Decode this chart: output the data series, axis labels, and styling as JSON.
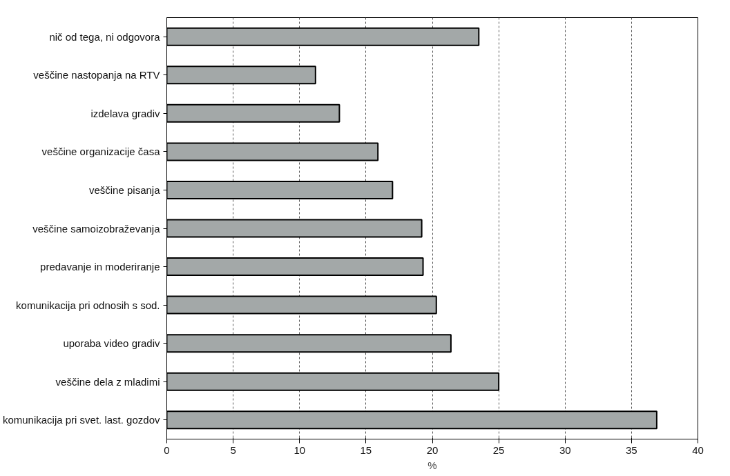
{
  "chart_data": {
    "type": "bar",
    "orientation": "horizontal",
    "xlabel": "%",
    "categories": [
      "nič od tega, ni odgovora",
      "veščine nastopanja na RTV",
      "izdelava gradiv",
      "veščine organizacije časa",
      "veščine pisanja",
      "veščine samoizobraževanja",
      "predavanje in moderiranje",
      "komunikacija pri odnosih s sod.",
      "uporaba video gradiv",
      "veščine dela z mladimi",
      "komunikacija pri svet. last. gozdov"
    ],
    "values": [
      23.5,
      11.2,
      13.0,
      15.9,
      17.0,
      19.2,
      19.3,
      20.3,
      21.4,
      25.0,
      36.9
    ],
    "color": "#a3a8a8",
    "xlim": [
      0,
      40
    ],
    "xticks": [
      0,
      5,
      10,
      15,
      20,
      25,
      30,
      35,
      40
    ],
    "grid": "x"
  }
}
